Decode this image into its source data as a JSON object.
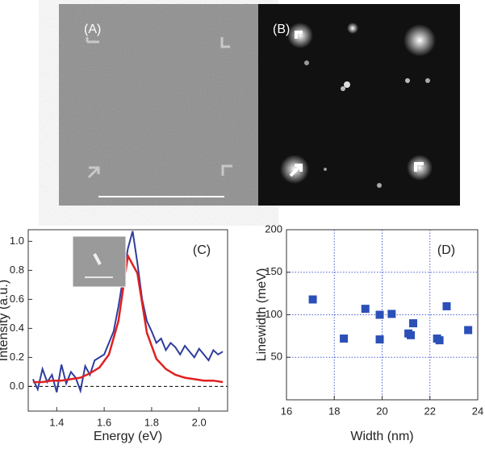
{
  "panels": [
    {
      "label": "(A)"
    },
    {
      "label": "(B)"
    }
  ],
  "chart_data": [
    {
      "type": "line",
      "annotation": "(C)",
      "xlabel": "Energy (eV)",
      "ylabel": "Intensity (a.u.)",
      "xlim": [
        1.28,
        2.12
      ],
      "xticks": [
        {
          "value": 1.4,
          "label": "1.4"
        },
        {
          "value": 1.6,
          "label": "1.6"
        },
        {
          "value": 1.8,
          "label": "1.8"
        },
        {
          "value": 2,
          "label": "2.0"
        }
      ],
      "ylim": [
        -0.17,
        1.08
      ],
      "yticks": [
        {
          "value": 0,
          "label": "0.0"
        },
        {
          "value": 0.2,
          "label": "0.2"
        },
        {
          "value": 0.4,
          "label": "0.4"
        },
        {
          "value": 0.6,
          "label": "0.6"
        },
        {
          "value": 0.8,
          "label": "0.8"
        },
        {
          "value": 1,
          "label": "1.0"
        }
      ],
      "hline": 0,
      "series": [
        {
          "color": "#2e3d9e",
          "x": [
            1.3,
            1.32,
            1.34,
            1.36,
            1.38,
            1.4,
            1.42,
            1.44,
            1.46,
            1.48,
            1.5,
            1.52,
            1.54,
            1.56,
            1.58,
            1.6,
            1.62,
            1.64,
            1.66,
            1.68,
            1.7,
            1.72,
            1.74,
            1.76,
            1.78,
            1.8,
            1.82,
            1.84,
            1.86,
            1.88,
            1.9,
            1.92,
            1.94,
            1.96,
            1.98,
            2.0,
            2.02,
            2.04,
            2.06,
            2.08,
            2.1
          ],
          "values": [
            0.05,
            -0.02,
            0.12,
            0.03,
            0.08,
            -0.04,
            0.15,
            0.02,
            0.1,
            0.06,
            -0.03,
            0.14,
            0.08,
            0.18,
            0.2,
            0.22,
            0.3,
            0.38,
            0.55,
            0.75,
            0.95,
            1.07,
            0.85,
            0.6,
            0.45,
            0.38,
            0.3,
            0.33,
            0.25,
            0.3,
            0.27,
            0.22,
            0.28,
            0.24,
            0.2,
            0.26,
            0.22,
            0.18,
            0.25,
            0.22,
            0.24
          ]
        },
        {
          "color": "#e02020",
          "x": [
            1.3,
            1.34,
            1.38,
            1.42,
            1.46,
            1.5,
            1.54,
            1.58,
            1.62,
            1.66,
            1.7,
            1.74,
            1.78,
            1.82,
            1.86,
            1.9,
            1.94,
            1.98,
            2.02,
            2.06,
            2.1
          ],
          "values": [
            0.03,
            0.03,
            0.04,
            0.04,
            0.05,
            0.06,
            0.09,
            0.13,
            0.22,
            0.45,
            0.9,
            0.78,
            0.37,
            0.19,
            0.12,
            0.08,
            0.06,
            0.05,
            0.04,
            0.04,
            0.03
          ]
        }
      ]
    },
    {
      "type": "scatter",
      "annotation": "(D)",
      "xlabel": "Width (nm)",
      "ylabel": "Linewidth (meV)",
      "xlim": [
        16,
        24
      ],
      "xticks": [
        16,
        18,
        20,
        22,
        24
      ],
      "ylim": [
        0,
        200
      ],
      "yticks": [
        50,
        100,
        150,
        200
      ],
      "grid": true,
      "series": [
        {
          "color": "#2b50b8",
          "x": [
            17.1,
            18.4,
            19.3,
            19.9,
            19.9,
            20.4,
            21.1,
            21.2,
            21.3,
            22.3,
            22.4,
            22.7,
            23.6
          ],
          "values": [
            118,
            72,
            107,
            100,
            71,
            101,
            78,
            76,
            90,
            72,
            70,
            110,
            82
          ]
        }
      ]
    }
  ]
}
